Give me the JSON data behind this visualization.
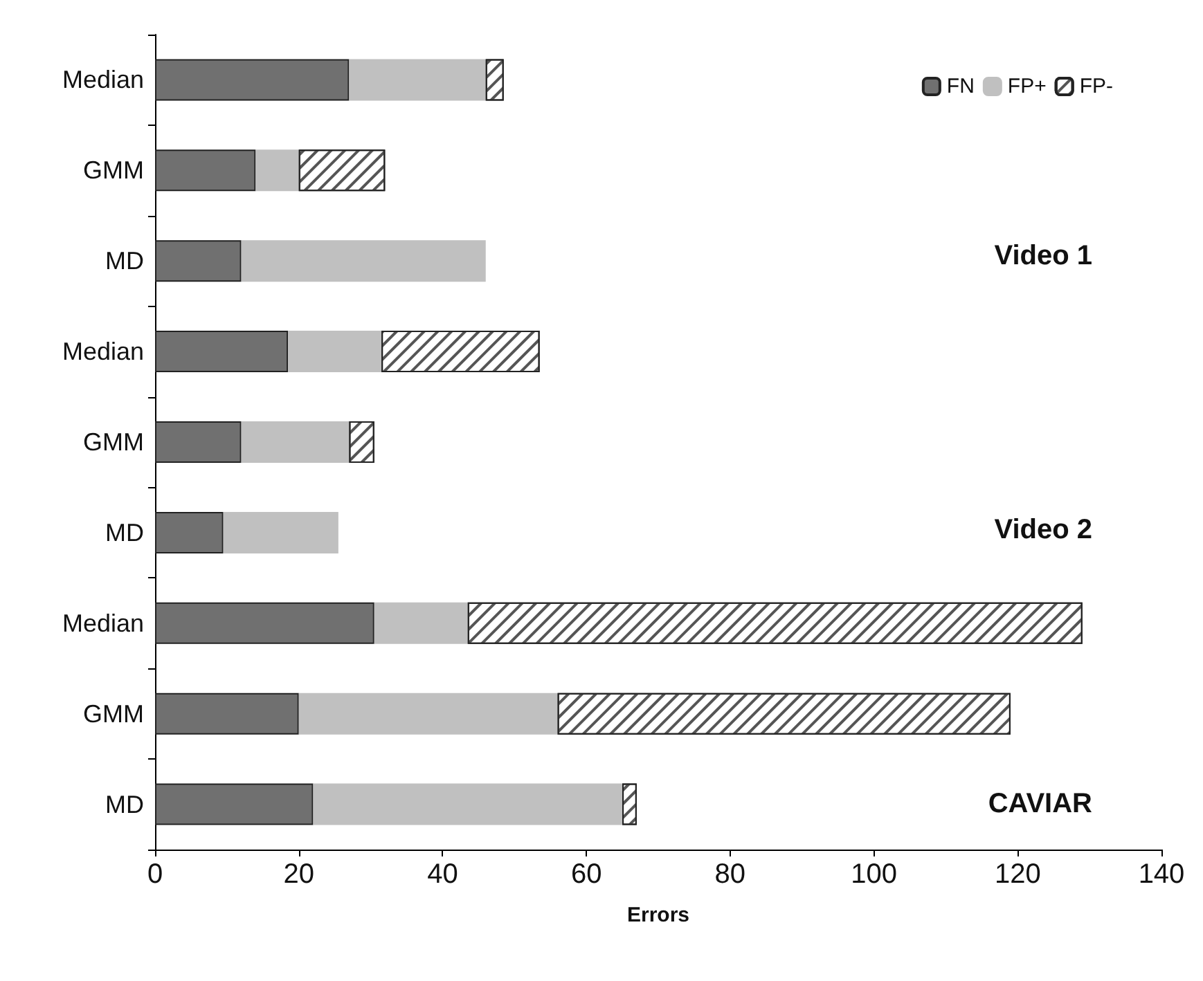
{
  "chart_data": {
    "type": "bar",
    "orientation": "horizontal",
    "stacked": true,
    "categories": [
      "Median",
      "GMM",
      "MD",
      "Median",
      "GMM",
      "MD",
      "Median",
      "GMM",
      "MD"
    ],
    "series": [
      {
        "name": "FN",
        "color": "#707070",
        "values": [
          27,
          14,
          12,
          18.5,
          12,
          9.5,
          30.5,
          20,
          22
        ]
      },
      {
        "name": "FP+",
        "color": "#c0c0c0",
        "values": [
          19,
          6,
          34,
          13,
          15,
          16,
          13,
          36,
          43
        ]
      },
      {
        "name": "FP-",
        "color": "#ffffff",
        "values": [
          2.5,
          12,
          0,
          22,
          3.5,
          0,
          85.5,
          63,
          2
        ]
      }
    ],
    "xlim": [
      0,
      140
    ],
    "xticks": [
      0,
      20,
      40,
      60,
      80,
      100,
      120,
      140
    ],
    "xlabel": "Errors",
    "legend": "top right",
    "grid": false,
    "annotations": [
      "Video 1",
      "Video 2",
      "CAVIAR"
    ]
  }
}
